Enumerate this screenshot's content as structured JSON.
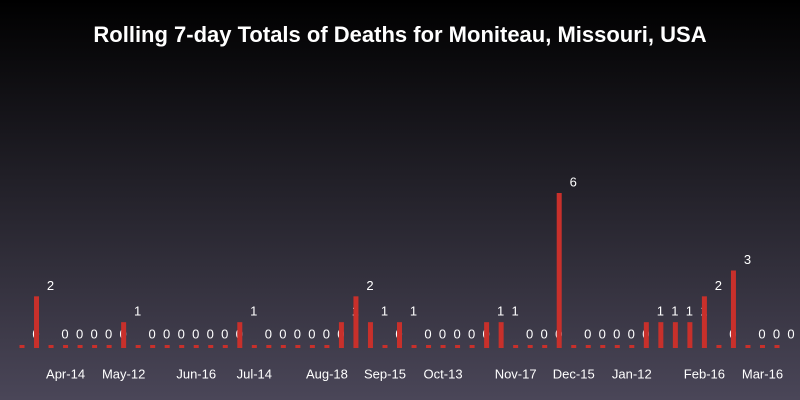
{
  "chart_data": {
    "type": "bar",
    "title": "Rolling 7-day Totals of Deaths for Moniteau, Missouri, USA",
    "color": "#c8302b",
    "categories": [
      null,
      null,
      null,
      "Apr-14",
      null,
      null,
      null,
      "May-12",
      null,
      null,
      null,
      null,
      "Jun-16",
      null,
      null,
      null,
      "Jul-14",
      null,
      null,
      null,
      null,
      "Aug-18",
      null,
      null,
      null,
      "Sep-15",
      null,
      null,
      null,
      "Oct-13",
      null,
      null,
      null,
      null,
      "Nov-17",
      null,
      null,
      null,
      "Dec-15",
      null,
      null,
      null,
      "Jan-12",
      null,
      null,
      null,
      null,
      "Feb-16",
      null,
      null,
      null,
      "Mar-16",
      null
    ],
    "values": [
      0,
      2,
      0,
      0,
      0,
      0,
      0,
      1,
      0,
      0,
      0,
      0,
      0,
      0,
      0,
      1,
      0,
      0,
      0,
      0,
      0,
      0,
      1,
      2,
      1,
      0,
      1,
      0,
      0,
      0,
      0,
      0,
      1,
      1,
      0,
      0,
      0,
      6,
      0,
      0,
      0,
      0,
      0,
      1,
      1,
      1,
      1,
      2,
      0,
      3,
      0,
      0,
      0
    ]
  }
}
